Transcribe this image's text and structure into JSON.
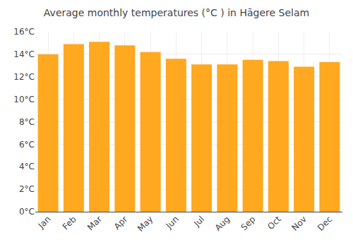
{
  "chart_data": {
    "type": "bar",
    "title": "Average monthly temperatures (°C ) in Hāgere Selam",
    "categories": [
      "Jan",
      "Feb",
      "Mar",
      "Apr",
      "May",
      "Jun",
      "Jul",
      "Aug",
      "Sep",
      "Oct",
      "Nov",
      "Dec"
    ],
    "values": [
      14.0,
      14.9,
      15.1,
      14.8,
      14.2,
      13.6,
      13.1,
      13.1,
      13.5,
      13.4,
      12.9,
      13.3
    ],
    "color": "#FFA820",
    "ylim": [
      0,
      16
    ],
    "yticks": [
      {
        "value": 0,
        "label": "0°C"
      },
      {
        "value": 2,
        "label": "2°C"
      },
      {
        "value": 4,
        "label": "4°C"
      },
      {
        "value": 6,
        "label": "6°C"
      },
      {
        "value": 8,
        "label": "8°C"
      },
      {
        "value": 10,
        "label": "10°C"
      },
      {
        "value": 12,
        "label": "12°C"
      },
      {
        "value": 14,
        "label": "14°C"
      },
      {
        "value": 16,
        "label": "16°C"
      }
    ],
    "grid": true
  }
}
